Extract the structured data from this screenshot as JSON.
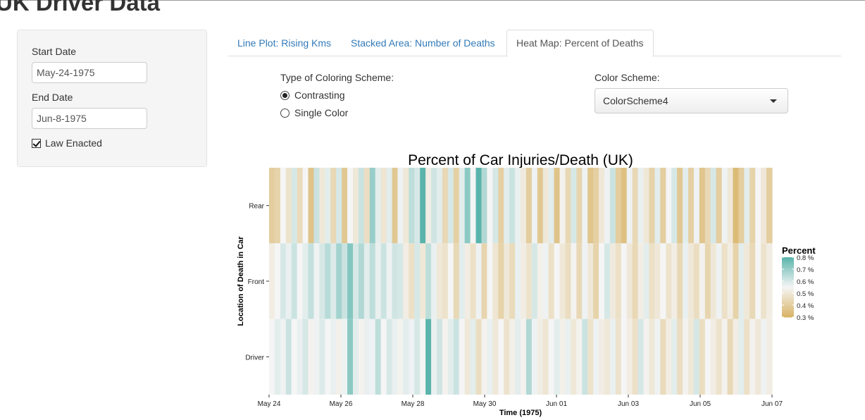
{
  "page": {
    "title": "UK Driver Data"
  },
  "sidebar": {
    "start_label": "Start Date",
    "start_value": "May-24-1975",
    "end_label": "End Date",
    "end_value": "Jun-8-1975",
    "law_label": "Law Enacted",
    "law_checked": true
  },
  "tabs": [
    {
      "label": "Line Plot: Rising Kms",
      "active": false
    },
    {
      "label": "Stacked Area: Number of Deaths",
      "active": false
    },
    {
      "label": "Heat Map: Percent of Deaths",
      "active": true
    }
  ],
  "controls": {
    "coloring_label": "Type of Coloring Scheme:",
    "options": [
      {
        "label": "Contrasting",
        "checked": true
      },
      {
        "label": "Single Color",
        "checked": false
      }
    ],
    "scheme_label": "Color Scheme:",
    "scheme_value": "ColorScheme4"
  },
  "chart_data": {
    "type": "heatmap",
    "title": "Percent of Car Injuries/Death (UK)",
    "xlabel": "Time (1975)",
    "ylabel": "Location of Death in Car",
    "x_ticks": [
      "May 24",
      "May 26",
      "May 28",
      "May 30",
      "Jun 01",
      "Jun 03",
      "Jun 05",
      "Jun 07"
    ],
    "x_range": [
      "May 24",
      "Jun 07"
    ],
    "y_categories": [
      "Rear",
      "Front",
      "Driver"
    ],
    "legend": {
      "title": "Percent",
      "ticks": [
        "0.8 %",
        "0.7 %",
        "0.6 %",
        "0.5 %",
        "0.4 %",
        "0.3 %"
      ],
      "range": [
        0.3,
        0.8
      ],
      "colors": [
        "#5ab4ac",
        "#f5f5f5",
        "#d8b365"
      ],
      "placement": "right"
    },
    "grid": false,
    "rows": {
      "Rear": [
        0.4,
        0.42,
        0.55,
        0.48,
        0.6,
        0.45,
        0.55,
        0.36,
        0.62,
        0.5,
        0.58,
        0.44,
        0.6,
        0.38,
        0.55,
        0.5,
        0.62,
        0.46,
        0.7,
        0.58,
        0.49,
        0.58,
        0.38,
        0.56,
        0.5,
        0.64,
        0.6,
        0.8,
        0.52,
        0.61,
        0.58,
        0.44,
        0.6,
        0.41,
        0.58,
        0.72,
        0.55,
        0.8,
        0.66,
        0.55,
        0.6,
        0.41,
        0.58,
        0.62,
        0.57,
        0.51,
        0.4,
        0.56,
        0.38,
        0.5,
        0.58,
        0.36,
        0.54,
        0.44,
        0.6,
        0.43,
        0.56,
        0.37,
        0.41,
        0.5,
        0.56,
        0.62,
        0.4,
        0.35,
        0.56,
        0.44,
        0.57,
        0.5,
        0.42,
        0.58,
        0.4,
        0.55,
        0.6,
        0.38,
        0.58,
        0.41,
        0.56,
        0.37,
        0.44,
        0.6,
        0.4,
        0.56,
        0.5,
        0.33,
        0.4,
        0.58,
        0.42,
        0.55,
        0.5,
        0.4
      ],
      "Front": [
        0.52,
        0.55,
        0.6,
        0.57,
        0.62,
        0.55,
        0.58,
        0.63,
        0.56,
        0.6,
        0.65,
        0.59,
        0.68,
        0.62,
        0.73,
        0.6,
        0.66,
        0.58,
        0.64,
        0.57,
        0.62,
        0.56,
        0.61,
        0.6,
        0.52,
        0.47,
        0.6,
        0.5,
        0.64,
        0.57,
        0.5,
        0.48,
        0.55,
        0.44,
        0.58,
        0.52,
        0.47,
        0.56,
        0.43,
        0.55,
        0.49,
        0.42,
        0.5,
        0.45,
        0.57,
        0.52,
        0.48,
        0.6,
        0.53,
        0.56,
        0.47,
        0.55,
        0.5,
        0.46,
        0.54,
        0.44,
        0.56,
        0.5,
        0.42,
        0.55,
        0.6,
        0.51,
        0.47,
        0.55,
        0.5,
        0.44,
        0.52,
        0.58,
        0.47,
        0.5,
        0.55,
        0.48,
        0.52,
        0.44,
        0.57,
        0.5,
        0.46,
        0.54,
        0.43,
        0.5,
        0.56,
        0.47,
        0.52,
        0.42,
        0.58,
        0.5,
        0.44,
        0.55,
        0.48,
        0.52
      ],
      "Driver": [
        0.55,
        0.58,
        0.56,
        0.62,
        0.55,
        0.57,
        0.6,
        0.54,
        0.56,
        0.59,
        0.55,
        0.57,
        0.53,
        0.56,
        0.72,
        0.58,
        0.54,
        0.57,
        0.56,
        0.64,
        0.55,
        0.6,
        0.57,
        0.54,
        0.58,
        0.56,
        0.6,
        0.55,
        0.8,
        0.57,
        0.61,
        0.54,
        0.58,
        0.62,
        0.55,
        0.5,
        0.58,
        0.46,
        0.54,
        0.57,
        0.5,
        0.55,
        0.48,
        0.53,
        0.58,
        0.54,
        0.66,
        0.56,
        0.52,
        0.49,
        0.55,
        0.58,
        0.53,
        0.57,
        0.5,
        0.54,
        0.62,
        0.48,
        0.56,
        0.52,
        0.5,
        0.57,
        0.48,
        0.55,
        0.52,
        0.47,
        0.6,
        0.54,
        0.5,
        0.56,
        0.45,
        0.52,
        0.58,
        0.46,
        0.54,
        0.5,
        0.6,
        0.46,
        0.55,
        0.52,
        0.48,
        0.54,
        0.44,
        0.52,
        0.58,
        0.47,
        0.54,
        0.5,
        0.56,
        0.52
      ]
    }
  }
}
